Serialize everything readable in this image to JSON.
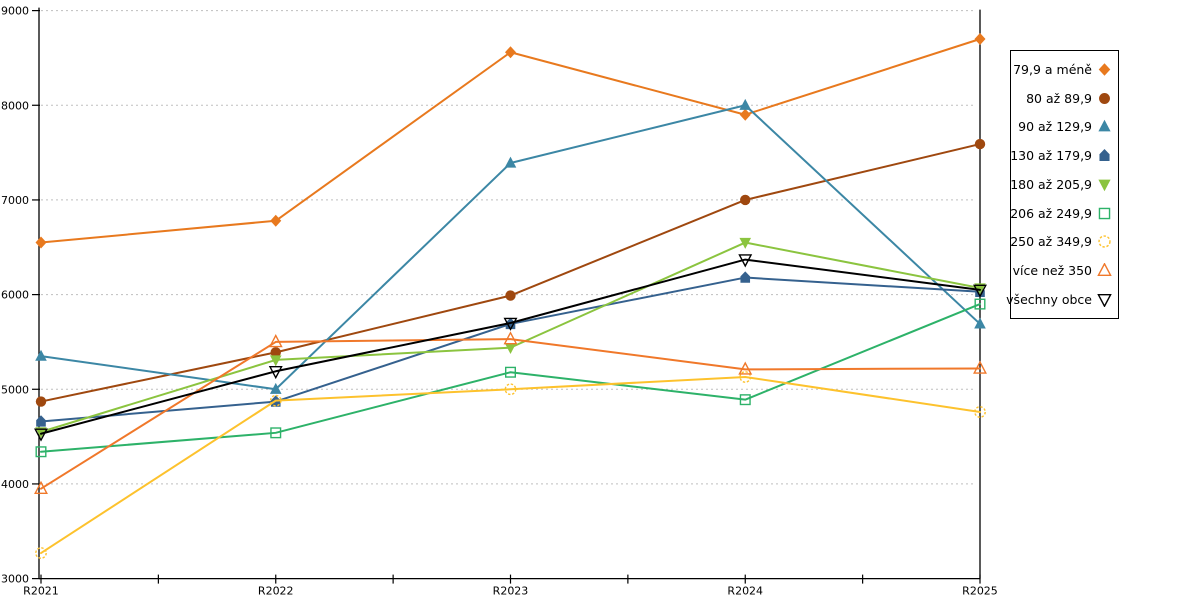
{
  "chart_data": {
    "type": "line",
    "title": "",
    "xlabel": "",
    "ylabel": "",
    "categories": [
      "R2021",
      "R2022",
      "R2023",
      "R2024",
      "R2025"
    ],
    "series": [
      {
        "name": "79,9 a méně",
        "color": "#E8791E",
        "marker": "diamond",
        "marker_fill": "solid",
        "values": [
          6550,
          6780,
          8560,
          7900,
          8700
        ]
      },
      {
        "name": "80 až 89,9",
        "color": "#9F480F",
        "marker": "circle",
        "marker_fill": "solid",
        "values": [
          4870,
          5390,
          5990,
          7000,
          7590
        ]
      },
      {
        "name": "90 až 129,9",
        "color": "#3C87A5",
        "marker": "triangle-up",
        "marker_fill": "solid",
        "values": [
          5350,
          5000,
          7390,
          8000,
          5690
        ]
      },
      {
        "name": "130 až 179,9",
        "color": "#35618E",
        "marker": "pentagon",
        "marker_fill": "solid",
        "values": [
          4660,
          4870,
          5690,
          6180,
          6030
        ]
      },
      {
        "name": "180 až 205,9",
        "color": "#8BC43F",
        "marker": "triangle-down",
        "marker_fill": "solid",
        "values": [
          4550,
          5310,
          5440,
          6550,
          6070
        ]
      },
      {
        "name": "206 až 249,9",
        "color": "#2DB269",
        "marker": "square",
        "marker_fill": "open",
        "values": [
          4340,
          4540,
          5180,
          4890,
          5900
        ]
      },
      {
        "name": "250 až 349,9",
        "color": "#FDC22D",
        "marker": "circle-dashed",
        "marker_fill": "open",
        "values": [
          3270,
          4880,
          5000,
          5130,
          4760
        ]
      },
      {
        "name": "více než 350",
        "color": "#F0782A",
        "marker": "triangle-up",
        "marker_fill": "open",
        "values": [
          3950,
          5500,
          5530,
          5210,
          5220
        ]
      },
      {
        "name": "všechny obce",
        "color": "#000000",
        "marker": "triangle-down",
        "marker_fill": "open",
        "values": [
          4530,
          5190,
          5700,
          6370,
          6050
        ]
      }
    ],
    "ylim": [
      3000,
      9000
    ],
    "ytick_step": 1000,
    "yticks": [
      "3000",
      "4000",
      "5000",
      "6000",
      "7000",
      "8000",
      "9000"
    ],
    "grid": "horizontal-dashed",
    "gridline_color": "#BFBFBF",
    "axis_color": "#000000",
    "legend_position": "right",
    "x_minor_ticks": "midpoints"
  }
}
